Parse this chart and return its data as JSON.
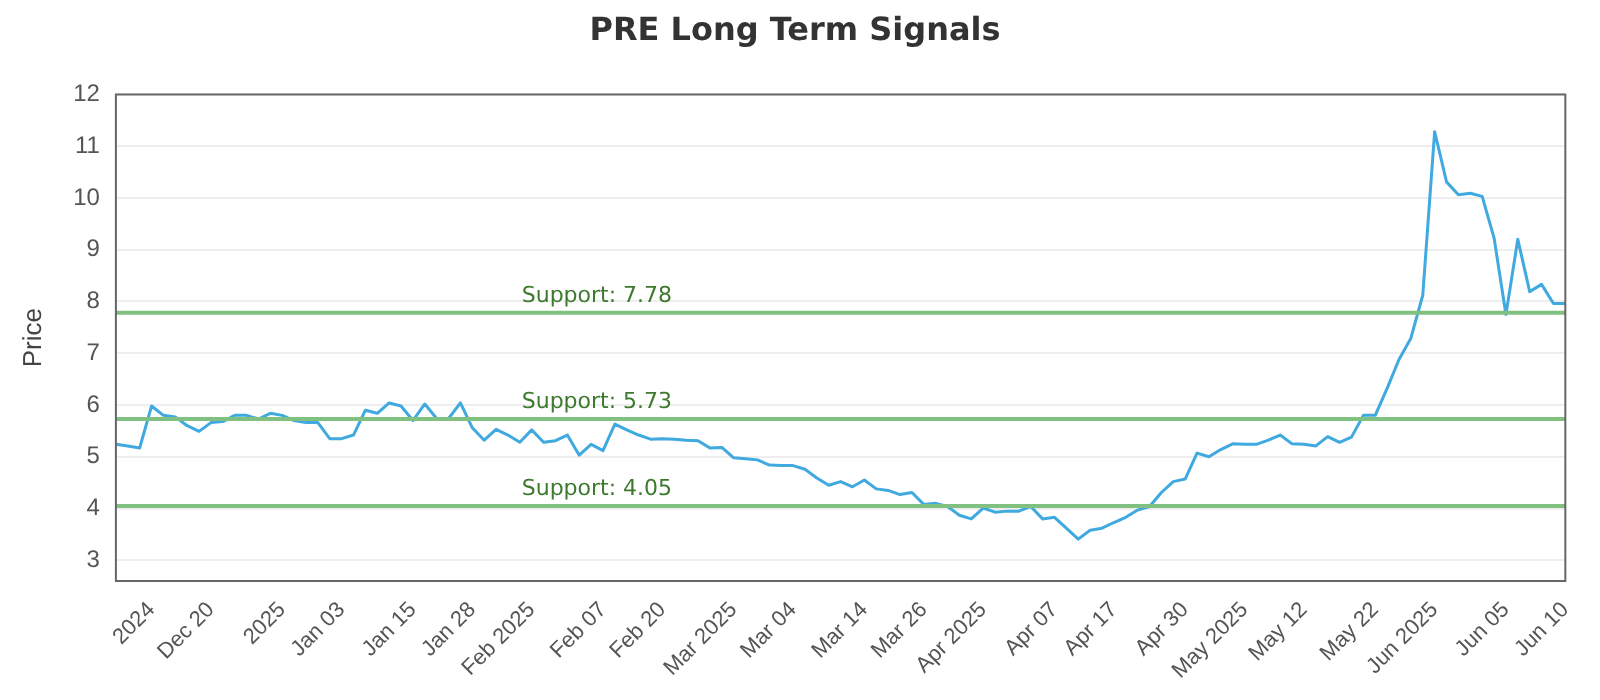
{
  "chart_data": {
    "type": "line",
    "title": "PRE Long Term Signals",
    "ylabel": "Price",
    "categories": [
      null,
      null,
      null,
      "2024",
      null,
      null,
      null,
      null,
      "Dec 20",
      null,
      null,
      null,
      null,
      null,
      "2025",
      null,
      null,
      null,
      null,
      "Jan 03",
      null,
      null,
      null,
      null,
      null,
      "Jan 15",
      null,
      null,
      null,
      null,
      "Jan 28",
      null,
      null,
      null,
      null,
      "Feb 2025",
      null,
      null,
      null,
      null,
      null,
      "Feb 07",
      null,
      null,
      null,
      null,
      "Feb 20",
      null,
      null,
      null,
      null,
      null,
      "Mar 2025",
      null,
      null,
      null,
      null,
      "Mar 04",
      null,
      null,
      null,
      null,
      null,
      "Mar 14",
      null,
      null,
      null,
      null,
      "Mar 26",
      null,
      null,
      null,
      null,
      "Apr 2025",
      null,
      null,
      null,
      null,
      null,
      "Apr 07",
      null,
      null,
      null,
      null,
      "Apr 17",
      null,
      null,
      null,
      null,
      null,
      "Apr 30",
      null,
      null,
      null,
      null,
      "May 2025",
      null,
      null,
      null,
      null,
      "May 12",
      null,
      null,
      null,
      null,
      null,
      "May 22",
      null,
      null,
      null,
      null,
      "Jun 2025",
      null,
      null,
      null,
      null,
      null,
      "Jun 05",
      null,
      null,
      null,
      null,
      "Jun 10"
    ],
    "series": [
      {
        "color": "#3fa9e0",
        "values": [
          5.24,
          5.21,
          5.17,
          5.98,
          5.8,
          5.77,
          5.6,
          5.49,
          5.66,
          5.68,
          5.8,
          5.8,
          5.73,
          5.84,
          5.8,
          5.7,
          5.66,
          5.66,
          5.35,
          5.35,
          5.42,
          5.9,
          5.84,
          6.04,
          5.98,
          5.7,
          6.02,
          5.74,
          5.74,
          6.04,
          5.56,
          5.32,
          5.53,
          5.42,
          5.28,
          5.52,
          5.28,
          5.31,
          5.42,
          5.03,
          5.24,
          5.12,
          5.63,
          5.52,
          5.42,
          5.34,
          5.35,
          5.34,
          5.32,
          5.31,
          5.17,
          5.18,
          4.98,
          4.96,
          4.94,
          4.84,
          4.83,
          4.83,
          4.76,
          4.59,
          4.45,
          4.52,
          4.42,
          4.55,
          4.38,
          4.35,
          4.27,
          4.31,
          4.08,
          4.1,
          4.04,
          3.87,
          3.8,
          4.01,
          3.93,
          3.95,
          3.95,
          4.04,
          3.8,
          3.83,
          3.62,
          3.41,
          3.58,
          3.62,
          3.73,
          3.83,
          3.97,
          4.04,
          4.31,
          4.52,
          4.57,
          5.07,
          5.0,
          5.14,
          5.25,
          5.24,
          5.24,
          5.32,
          5.42,
          5.25,
          5.24,
          5.21,
          5.39,
          5.28,
          5.38,
          5.8,
          5.8,
          6.32,
          6.88,
          7.29,
          8.12,
          11.28,
          10.31,
          10.06,
          10.09,
          10.03,
          9.23,
          7.75,
          9.2,
          8.19,
          8.33,
          7.96,
          7.96
        ]
      }
    ],
    "ylim": [
      2.6,
      12
    ],
    "yticks": [
      3,
      4,
      5,
      6,
      7,
      8,
      9,
      10,
      11,
      12
    ],
    "grid": "y",
    "legend": false,
    "marker": "none",
    "line_style": "solid",
    "ref_lines": [
      {
        "axis": "y",
        "value": 7.78,
        "label": "Support: 7.78",
        "color": "#80c080"
      },
      {
        "axis": "y",
        "value": 5.73,
        "label": "Support: 5.73",
        "color": "#80c080"
      },
      {
        "axis": "y",
        "value": 4.05,
        "label": "Support: 4.05",
        "color": "#80c080"
      }
    ]
  }
}
